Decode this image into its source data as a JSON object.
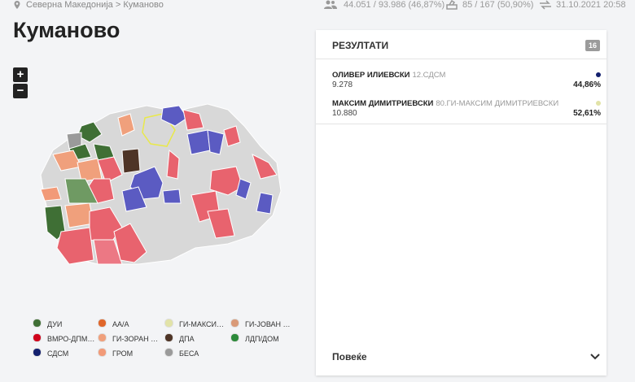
{
  "breadcrumb": [
    "Северна Македонија",
    "Куманово"
  ],
  "stats": {
    "turnout": "44.051 / 93.986 (46,87%)",
    "stations": "85 / 167 (50,90%)",
    "updated": "31.10.2021 20:58"
  },
  "title": "Куманово",
  "zoom": [
    "+",
    "−"
  ],
  "legend": [
    {
      "name": "ДУИ",
      "color": "#3f6f35"
    },
    {
      "name": "ВМРО-ДПМ…",
      "color": "#d0021b"
    },
    {
      "name": "СДСМ",
      "color": "#13206e"
    },
    {
      "name": "АА/А",
      "color": "#e0662a"
    },
    {
      "name": "ГИ-ЗОРАН …",
      "color": "#f0a07c"
    },
    {
      "name": "ГРОМ",
      "color": "#f29a78"
    },
    {
      "name": "ГИ-МАКСИ…",
      "color": "#e2e3a8"
    },
    {
      "name": "ДПА",
      "color": "#4e3426"
    },
    {
      "name": "БЕСА",
      "color": "#9a9a9a"
    },
    {
      "name": "ГИ-ЈОВАН …",
      "color": "#d99a78"
    },
    {
      "name": "ЛДП/ДОМ",
      "color": "#2c8a3a"
    }
  ],
  "results": {
    "title": "РЕЗУЛТАТИ",
    "badge": "16",
    "candidates": [
      {
        "name": "ОЛИВЕР ИЛИЕВСКИ",
        "party": "12.СДСМ",
        "votes": "9.278",
        "percent": "44,86%",
        "color": "#13206e"
      },
      {
        "name": "МАКСИМ ДИМИТРИЕВСКИ",
        "party": "80.ГИ-МАКСИМ ДИМИТРИЕВСКИ",
        "votes": "10.880",
        "percent": "52,61%",
        "color": "#e2e3a8"
      }
    ],
    "more": "Повеќе"
  }
}
